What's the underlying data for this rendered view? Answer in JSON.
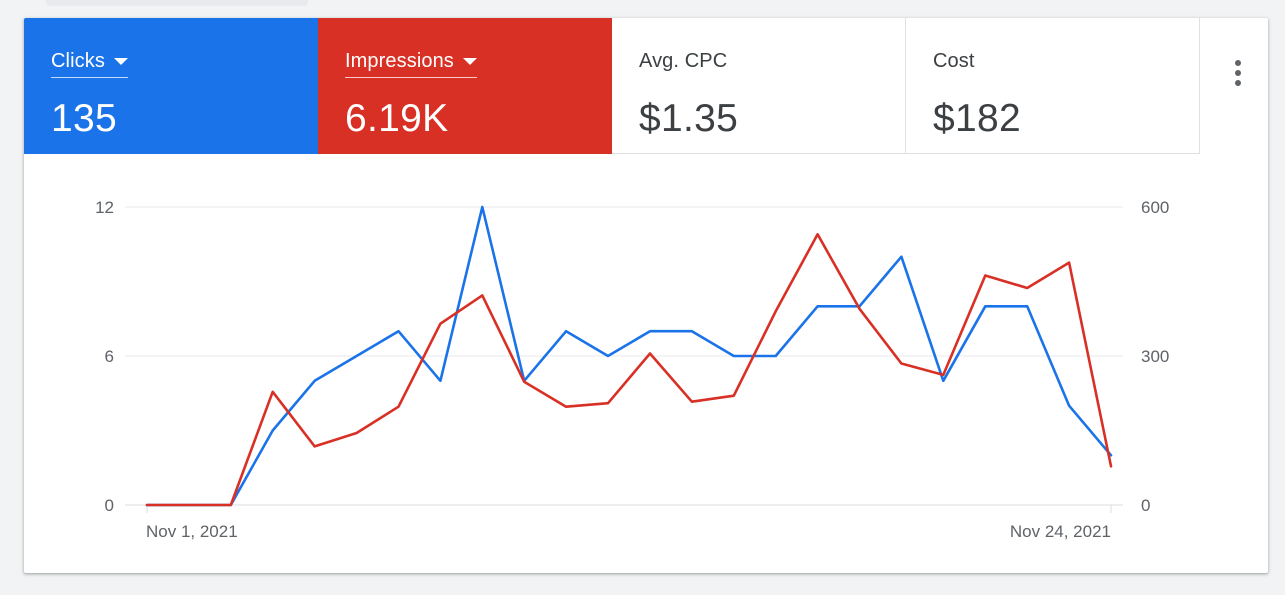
{
  "metrics": {
    "clicks": {
      "label": "Clicks",
      "value": "135",
      "color": "#1a73e8"
    },
    "impressions": {
      "label": "Impressions",
      "value": "6.19K",
      "color": "#d93025"
    },
    "avg_cpc": {
      "label": "Avg. CPC",
      "value": "$1.35"
    },
    "cost": {
      "label": "Cost",
      "value": "$182"
    }
  },
  "menu": {
    "icon": "more-vert-icon"
  },
  "chart_data": {
    "type": "line",
    "x_labels": [
      "Nov 1, 2021",
      "Nov 24, 2021"
    ],
    "x_range": [
      1,
      24
    ],
    "left_axis": {
      "ticks": [
        "12",
        "6",
        "0"
      ],
      "ylim": [
        0,
        12
      ]
    },
    "right_axis": {
      "ticks": [
        "600",
        "300",
        "0"
      ],
      "ylim": [
        0,
        600
      ]
    },
    "grid": true,
    "series": [
      {
        "name": "Clicks",
        "axis": "left",
        "color": "#1a73e8",
        "values": [
          0,
          0,
          0,
          3,
          5,
          6,
          7,
          5,
          12,
          5,
          7,
          6,
          7,
          7,
          6,
          6,
          8,
          8,
          10,
          5,
          8,
          8,
          4,
          2
        ]
      },
      {
        "name": "Impressions",
        "axis": "right",
        "color": "#d93025",
        "values": [
          0,
          0,
          0,
          228,
          118,
          145,
          198,
          365,
          422,
          248,
          198,
          205,
          305,
          208,
          220,
          390,
          545,
          395,
          285,
          262,
          462,
          437,
          488,
          78
        ]
      }
    ]
  }
}
